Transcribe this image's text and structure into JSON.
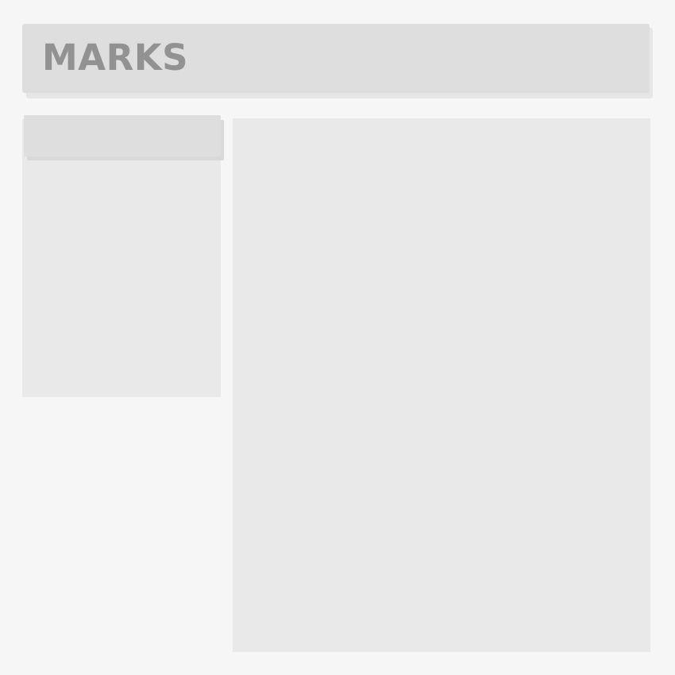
{
  "header": {
    "title": "MARKS"
  },
  "sidebar": {
    "header_label": ""
  },
  "colors": {
    "page_background": "#f6f6f6",
    "header_background": "#dedede",
    "panel_background": "#e9e9e9",
    "title_text": "#929292"
  }
}
